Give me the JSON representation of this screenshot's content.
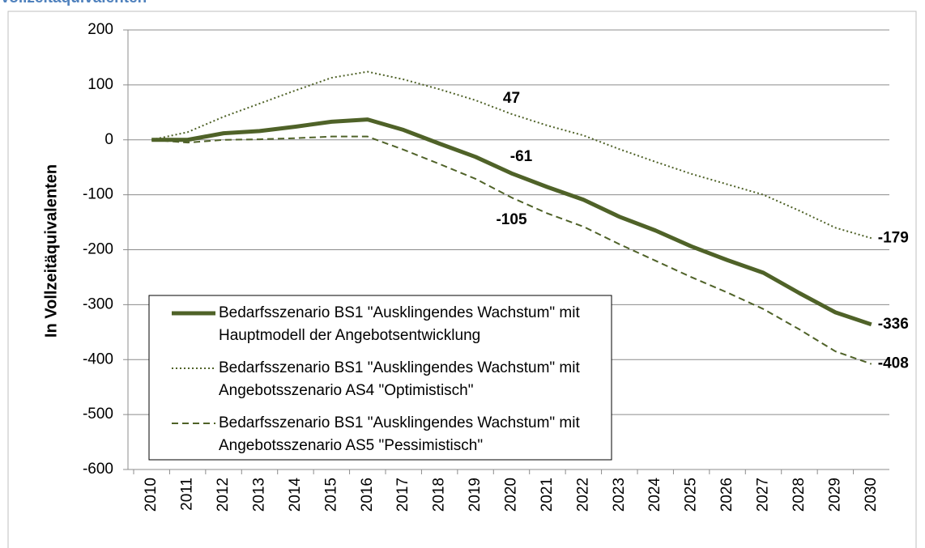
{
  "chart_data": {
    "type": "line",
    "title": "Vollzeitäquivalenten",
    "y_label": "In Vollzeitäquivalenten",
    "categories": [
      "2010",
      "2011",
      "2012",
      "2013",
      "2014",
      "2015",
      "2016",
      "2017",
      "2018",
      "2019",
      "2020",
      "2021",
      "2022",
      "2023",
      "2024",
      "2025",
      "2026",
      "2027",
      "2028",
      "2029",
      "2030"
    ],
    "series": [
      {
        "name": "Bedarfsszenario BS1 \"Ausklingendes Wachstum\" mit Hauptmodell der Angebotsentwicklung",
        "color": "#4f6228",
        "style": "solid",
        "values": [
          0,
          0,
          12,
          16,
          24,
          33,
          37,
          18,
          -7,
          -31,
          -61,
          -86,
          -109,
          -140,
          -165,
          -194,
          -219,
          -242,
          -279,
          -314,
          -336
        ],
        "label_indices": [
          10,
          20
        ]
      },
      {
        "name": "Bedarfsszenario BS1 \"Ausklingendes Wachstum\" mit Angebotsszenario AS4 \"Optimistisch\"",
        "color": "#4f6228",
        "style": "dotted",
        "values": [
          0,
          14,
          42,
          66,
          90,
          113,
          124,
          110,
          92,
          72,
          47,
          26,
          8,
          -17,
          -40,
          -62,
          -81,
          -100,
          -129,
          -160,
          -179
        ],
        "label_indices": [
          10,
          20
        ]
      },
      {
        "name": "Bedarfsszenario BS1 \"Ausklingendes Wachstum\" mit Angebotsszenario AS5 \"Pessimistisch\"",
        "color": "#4f6228",
        "style": "dashed",
        "values": [
          0,
          -5,
          0,
          1,
          3,
          6,
          6,
          -18,
          -44,
          -71,
          -105,
          -134,
          -158,
          -190,
          -220,
          -250,
          -278,
          -308,
          -345,
          -385,
          -408
        ],
        "label_indices": [
          10,
          20
        ]
      }
    ],
    "ylim": [
      -600,
      200
    ],
    "yticks": [
      -600,
      -500,
      -400,
      -300,
      -200,
      -100,
      0,
      100,
      200
    ],
    "grid": true
  }
}
